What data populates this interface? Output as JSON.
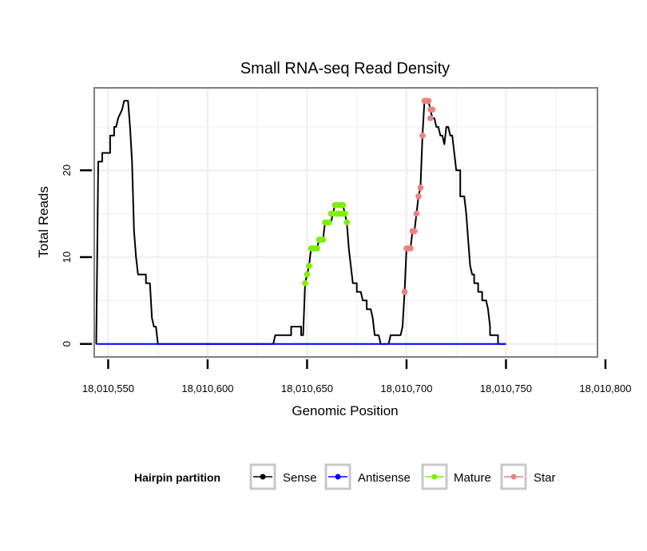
{
  "colors": {
    "sense": "#000000",
    "antisense": "#0000ff",
    "mature": "#7cf000",
    "star": "#f08080",
    "grid": "#f0f0f0",
    "panel_border": "#7f7f7f",
    "legend_key_border": "#c8c8c8"
  },
  "chart_data": {
    "type": "line",
    "title": "Small RNA-seq Read Density",
    "xlabel": "Genomic Position",
    "ylabel": "Total Reads",
    "xlim": [
      18010543,
      18010796
    ],
    "ylim": [
      -1.5,
      29.5
    ],
    "xticks": [
      18010550,
      18010600,
      18010650,
      18010700,
      18010750,
      18010800
    ],
    "xtick_labels": [
      "18,010,550",
      "18,010,600",
      "18,010,650",
      "18,010,700",
      "18,010,750",
      "18,010,800"
    ],
    "yticks": [
      0,
      10,
      20
    ],
    "ytick_labels": [
      "0",
      "10",
      "20"
    ],
    "grid": true,
    "legend": {
      "title": "Hairpin partition",
      "position": "bottom",
      "entries": [
        "Sense",
        "Antisense",
        "Mature",
        "Star"
      ]
    },
    "series": [
      {
        "name": "Sense",
        "style": "step-line",
        "points": [
          [
            18010544,
            0
          ],
          [
            18010545,
            21
          ],
          [
            18010547,
            21
          ],
          [
            18010547,
            22
          ],
          [
            18010551,
            22
          ],
          [
            18010551,
            24
          ],
          [
            18010553,
            24
          ],
          [
            18010553,
            25
          ],
          [
            18010554,
            25
          ],
          [
            18010555,
            26
          ],
          [
            18010557,
            27
          ],
          [
            18010558,
            28
          ],
          [
            18010560,
            28
          ],
          [
            18010561,
            25
          ],
          [
            18010562,
            21
          ],
          [
            18010563,
            13
          ],
          [
            18010564,
            10
          ],
          [
            18010565,
            8
          ],
          [
            18010569,
            8
          ],
          [
            18010569,
            7
          ],
          [
            18010571,
            7
          ],
          [
            18010572,
            3
          ],
          [
            18010573,
            2
          ],
          [
            18010574,
            2
          ],
          [
            18010575,
            0
          ],
          [
            18010633,
            0
          ],
          [
            18010634,
            1
          ],
          [
            18010642,
            1
          ],
          [
            18010642,
            2
          ],
          [
            18010647,
            2
          ],
          [
            18010647,
            1
          ],
          [
            18010648,
            1
          ],
          [
            18010649,
            7
          ],
          [
            18010650,
            8
          ],
          [
            18010651,
            9
          ],
          [
            18010652,
            11
          ],
          [
            18010653,
            11
          ],
          [
            18010655,
            11
          ],
          [
            18010656,
            12
          ],
          [
            18010658,
            12
          ],
          [
            18010659,
            14
          ],
          [
            18010662,
            14
          ],
          [
            18010663,
            15
          ],
          [
            18010664,
            16
          ],
          [
            18010667,
            16
          ],
          [
            18010668,
            16
          ],
          [
            18010669,
            15
          ],
          [
            18010670,
            14
          ],
          [
            18010671,
            11
          ],
          [
            18010672,
            9
          ],
          [
            18010673,
            7
          ],
          [
            18010675,
            7
          ],
          [
            18010675,
            6
          ],
          [
            18010677,
            6
          ],
          [
            18010678,
            5
          ],
          [
            18010680,
            5
          ],
          [
            18010680,
            4
          ],
          [
            18010682,
            4
          ],
          [
            18010683,
            3
          ],
          [
            18010684,
            1
          ],
          [
            18010686,
            1
          ],
          [
            18010687,
            0
          ],
          [
            18010691,
            0
          ],
          [
            18010692,
            1
          ],
          [
            18010697,
            1
          ],
          [
            18010698,
            2
          ],
          [
            18010699,
            6
          ],
          [
            18010700,
            11
          ],
          [
            18010702,
            11
          ],
          [
            18010703,
            13
          ],
          [
            18010704,
            13
          ],
          [
            18010705,
            15
          ],
          [
            18010706,
            17
          ],
          [
            18010707,
            18
          ],
          [
            18010708,
            24
          ],
          [
            18010709,
            28
          ],
          [
            18010711,
            28
          ],
          [
            18010712,
            27
          ],
          [
            18010713,
            26
          ],
          [
            18010714,
            26
          ],
          [
            18010715,
            25
          ],
          [
            18010716,
            25
          ],
          [
            18010717,
            24
          ],
          [
            18010718,
            24
          ],
          [
            18010719,
            23
          ],
          [
            18010720,
            25
          ],
          [
            18010721,
            25
          ],
          [
            18010722,
            24
          ],
          [
            18010723,
            24
          ],
          [
            18010724,
            22
          ],
          [
            18010725,
            20
          ],
          [
            18010727,
            20
          ],
          [
            18010727,
            17
          ],
          [
            18010729,
            17
          ],
          [
            18010730,
            15
          ],
          [
            18010731,
            12
          ],
          [
            18010732,
            9
          ],
          [
            18010733,
            8
          ],
          [
            18010734,
            8
          ],
          [
            18010734,
            7
          ],
          [
            18010736,
            7
          ],
          [
            18010736,
            6
          ],
          [
            18010738,
            6
          ],
          [
            18010738,
            5
          ],
          [
            18010740,
            5
          ],
          [
            18010741,
            4
          ],
          [
            18010742,
            2
          ],
          [
            18010742,
            1
          ],
          [
            18010746,
            1
          ],
          [
            18010746,
            0
          ],
          [
            18010750,
            0
          ]
        ]
      },
      {
        "name": "Antisense",
        "style": "line",
        "points": [
          [
            18010544,
            0
          ],
          [
            18010750,
            0
          ]
        ]
      },
      {
        "name": "Mature",
        "style": "points",
        "points": [
          [
            18010649,
            7
          ],
          [
            18010650,
            8
          ],
          [
            18010651,
            9
          ],
          [
            18010652,
            11
          ],
          [
            18010653,
            11
          ],
          [
            18010654,
            11
          ],
          [
            18010655,
            11
          ],
          [
            18010656,
            12
          ],
          [
            18010657,
            12
          ],
          [
            18010658,
            12
          ],
          [
            18010659,
            14
          ],
          [
            18010660,
            14
          ],
          [
            18010661,
            14
          ],
          [
            18010662,
            15
          ],
          [
            18010663,
            15
          ],
          [
            18010664,
            16
          ],
          [
            18010665,
            16
          ],
          [
            18010666,
            16
          ],
          [
            18010667,
            16
          ],
          [
            18010668,
            16
          ],
          [
            18010665,
            15
          ],
          [
            18010666,
            15
          ],
          [
            18010667,
            15
          ],
          [
            18010668,
            15
          ],
          [
            18010669,
            15
          ],
          [
            18010670,
            14
          ]
        ]
      },
      {
        "name": "Star",
        "style": "points",
        "points": [
          [
            18010699,
            6
          ],
          [
            18010700,
            11
          ],
          [
            18010701,
            11
          ],
          [
            18010702,
            11
          ],
          [
            18010703,
            13
          ],
          [
            18010704,
            13
          ],
          [
            18010705,
            15
          ],
          [
            18010706,
            17
          ],
          [
            18010707,
            18
          ],
          [
            18010708,
            24
          ],
          [
            18010709,
            28
          ],
          [
            18010710,
            28
          ],
          [
            18010711,
            28
          ],
          [
            18010712,
            27
          ],
          [
            18010712,
            26
          ],
          [
            18010713,
            27
          ]
        ]
      }
    ]
  }
}
